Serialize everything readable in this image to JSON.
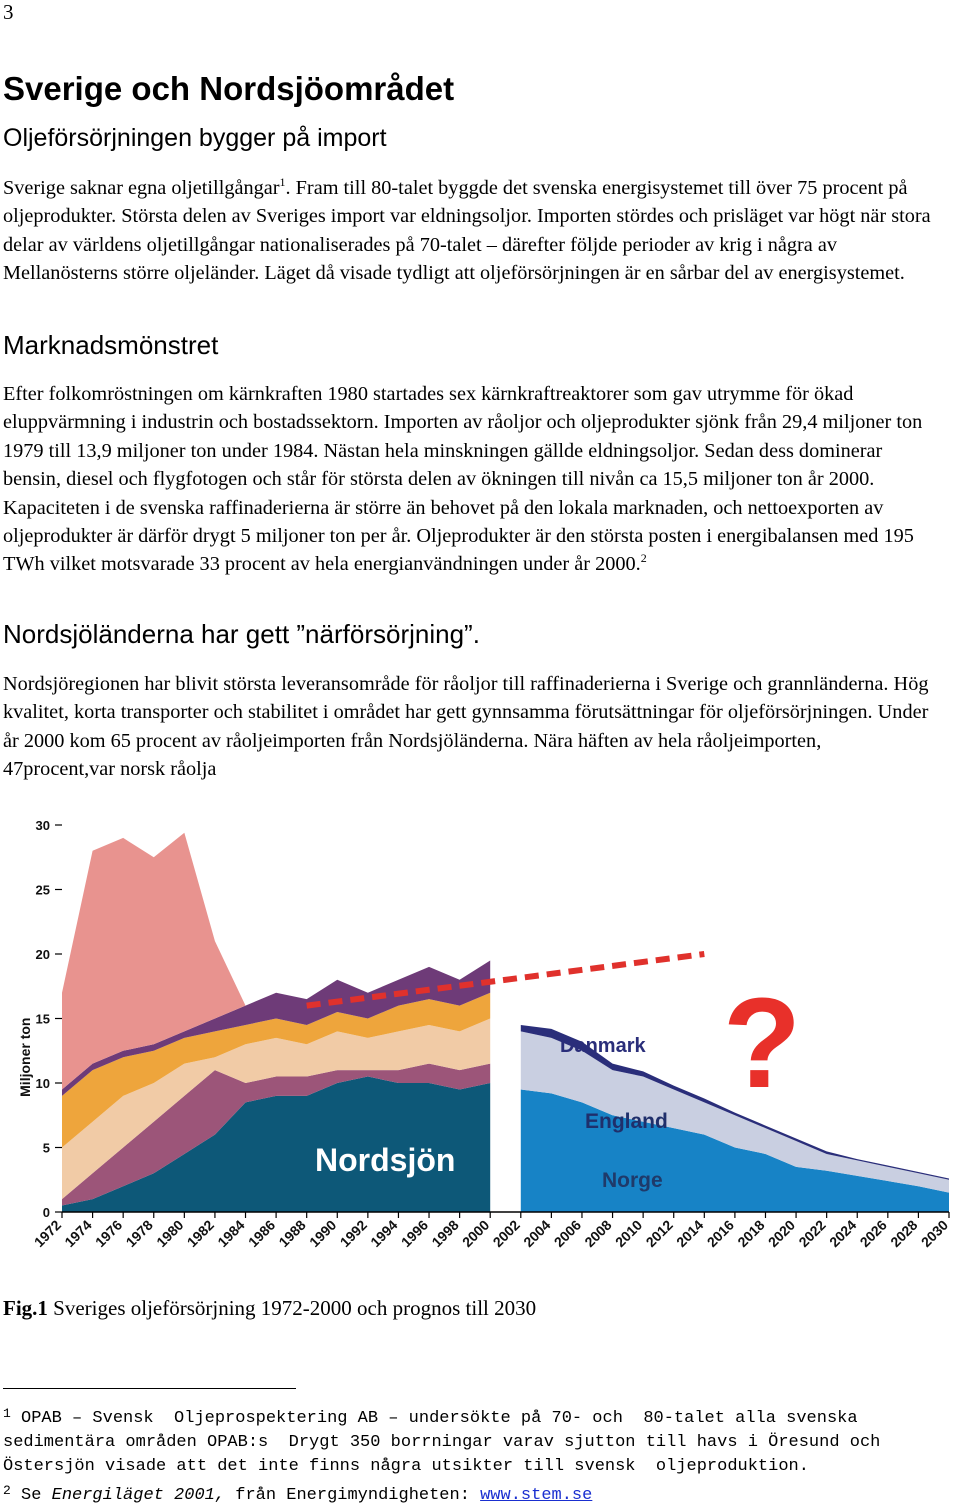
{
  "page": {
    "page_number": "3",
    "title": "Sverige och Nordsjöområdet",
    "subtitle": "Oljeförsörjningen bygger på import",
    "p1": [
      "Sverige saknar egna oljetillgångar",
      "1",
      ". Fram till 80-talet byggde det svenska energisystemet till över 75 procent på oljeprodukter. Största delen av Sveriges import var eldningsoljor. Importen stördes och prisläget var högt när stora delar av världens oljetillgångar nationaliserades på 70-talet – därefter följde perioder av krig i några av Mellanösterns större oljeländer. Läget då visade tydligt att oljeförsörjningen är en sårbar del av energisystemet."
    ],
    "heading2": "Marknadsmönstret",
    "p2": [
      "Efter folkomröstningen om kärnkraften 1980 startades sex kärnkraftreaktorer som gav utrymme för ökad eluppvärmning i industrin och bostadssektorn. Importen av råoljor och oljeprodukter sjönk från 29,4 miljoner ton 1979 till 13,9 miljoner ton under 1984. Nästan hela minskningen gällde eldningsoljor. Sedan dess dominerar bensin, diesel och flygfotogen och står för största delen av ökningen till nivån ca 15,5 miljoner ton år 2000. Kapaciteten i de svenska raffinaderierna är större än behovet på den lokala marknaden, och nettoexporten av oljeprodukter är därför drygt 5 miljoner ton per år. Oljeprodukter är den största posten i energibalansen med 195 TWh vilket motsvarade 33 procent av hela energianvändningen under år 2000.",
      "2"
    ],
    "heading3": "Nordsjöländerna har gett ”närförsörjning”.",
    "p3": "Nordsjöregionen har blivit största leveransområde för råoljor till raffinaderierna i Sverige och grannländerna. Hög kvalitet, korta transporter och stabilitet i området har gett gynnsamma förutsättningar för oljeförsörjningen. Under år 2000 kom 65 procent av råoljeimporten från Nordsjöländerna. Nära häften av hela råoljeimporten, 47procent,var norsk råolja",
    "caption": [
      "Fig.1",
      " Sveriges oljeförsörjning 1972-2000 och prognos till 2030"
    ],
    "footnotes": [
      [
        "1",
        "OPAB – Svensk  Oljeprospektering AB – undersökte på 70- och  80-talet alla svenska sedimentära områden OPAB:s  Drygt 350 borrningar varav sjutton till havs i Öresund och Östersjön visade att det inte finns några utsikter till svensk  oljeproduktion."
      ],
      [
        "2",
        "Se ",
        "Energiläget 2001,",
        " från Energimyndigheten: ",
        "www.stem.se"
      ]
    ]
  },
  "chart_data": {
    "type": "stacked_area",
    "ylabel": "Miljoner ton",
    "x": [
      1972,
      1974,
      1976,
      1978,
      1980,
      1982,
      1984,
      1986,
      1988,
      1990,
      1992,
      1994,
      1996,
      1998,
      2000,
      2002,
      2004,
      2006,
      2008,
      2010,
      2012,
      2014,
      2016,
      2018,
      2020,
      2022,
      2024,
      2026,
      2028,
      2030
    ],
    "xlim": [
      1972,
      2030
    ],
    "xticks": [
      1972,
      1974,
      1976,
      1978,
      1980,
      1982,
      1984,
      1986,
      1988,
      1990,
      1992,
      1994,
      1996,
      1998,
      2000,
      2002,
      2004,
      2006,
      2008,
      2010,
      2012,
      2014,
      2016,
      2018,
      2020,
      2022,
      2024,
      2026,
      2028,
      2030
    ],
    "ylim": [
      0,
      30
    ],
    "yticks": [
      0,
      5,
      10,
      15,
      20,
      25,
      30
    ],
    "grid": false,
    "series": [
      {
        "name": "Nordsjön",
        "color": "#0d5878",
        "values": [
          0.5,
          1,
          2,
          3,
          4.5,
          6,
          8.5,
          9,
          9,
          10,
          10.5,
          10,
          10,
          9.5,
          10,
          null,
          null,
          null,
          null,
          null,
          null,
          null,
          null,
          null,
          null,
          null,
          null,
          null,
          null,
          null
        ]
      },
      {
        "color": "#9c5579",
        "values": [
          0.5,
          2,
          3,
          4,
          4.5,
          5,
          1.5,
          1.5,
          1.5,
          1,
          0.5,
          1,
          1.5,
          1.5,
          1.5,
          null,
          null,
          null,
          null,
          null,
          null,
          null,
          null,
          null,
          null,
          null,
          null,
          null,
          null,
          null
        ]
      },
      {
        "color": "#f1cba6",
        "values": [
          4,
          4,
          4,
          3,
          2.5,
          1,
          3,
          3,
          2.5,
          3,
          2.5,
          3,
          3,
          3,
          3.5,
          null,
          null,
          null,
          null,
          null,
          null,
          null,
          null,
          null,
          null,
          null,
          null,
          null,
          null,
          null
        ]
      },
      {
        "color": "#eea53c",
        "values": [
          4,
          4,
          3,
          2.5,
          2,
          2,
          1.5,
          1.5,
          1.5,
          1.5,
          1.5,
          2,
          2,
          2,
          2,
          null,
          null,
          null,
          null,
          null,
          null,
          null,
          null,
          null,
          null,
          null,
          null,
          null,
          null,
          null
        ]
      },
      {
        "color": "#6e3b78",
        "values": [
          0.5,
          0.5,
          0.5,
          0.5,
          0.5,
          1,
          1.5,
          2,
          2,
          2.5,
          2,
          2,
          2.5,
          2,
          2.5,
          null,
          null,
          null,
          null,
          null,
          null,
          null,
          null,
          null,
          null,
          null,
          null,
          null,
          null,
          null
        ]
      },
      {
        "color": "#e8938f",
        "values": [
          7.5,
          16.5,
          16.5,
          14.5,
          15.4,
          6,
          0,
          0,
          0,
          0,
          0,
          0,
          0,
          0,
          0,
          null,
          null,
          null,
          null,
          null,
          null,
          null,
          null,
          null,
          null,
          null,
          null,
          null,
          null,
          null
        ]
      },
      {
        "name": "Norge",
        "color": "#1783c6",
        "values": [
          null,
          null,
          null,
          null,
          null,
          null,
          null,
          null,
          null,
          null,
          null,
          null,
          null,
          null,
          null,
          9.5,
          9.2,
          8.5,
          7.5,
          7,
          6.5,
          6,
          5,
          4.5,
          3.5,
          3.2,
          2.8,
          2.4,
          2,
          1.5
        ]
      },
      {
        "name": "England",
        "color": "#c9cfe1",
        "values": [
          null,
          null,
          null,
          null,
          null,
          null,
          null,
          null,
          null,
          null,
          null,
          null,
          null,
          null,
          null,
          4.5,
          4.3,
          4,
          3.5,
          3.5,
          3,
          2.5,
          2.5,
          2,
          2,
          1.3,
          1.2,
          1.1,
          1,
          1
        ]
      },
      {
        "name": "Danmark",
        "color": "#2a2e7a",
        "values": [
          null,
          null,
          null,
          null,
          null,
          null,
          null,
          null,
          null,
          null,
          null,
          null,
          null,
          null,
          null,
          0.5,
          0.7,
          0.7,
          0.5,
          0.4,
          0.3,
          0.3,
          0.2,
          0.2,
          0.2,
          0.2,
          0.1,
          0.1,
          0.1,
          0.1
        ]
      }
    ],
    "trend": {
      "x": [
        1988,
        2014
      ],
      "values": [
        16,
        20
      ],
      "color": "#e0312c"
    },
    "annotations": [
      {
        "text": "?",
        "color": "#e8302a"
      }
    ]
  }
}
